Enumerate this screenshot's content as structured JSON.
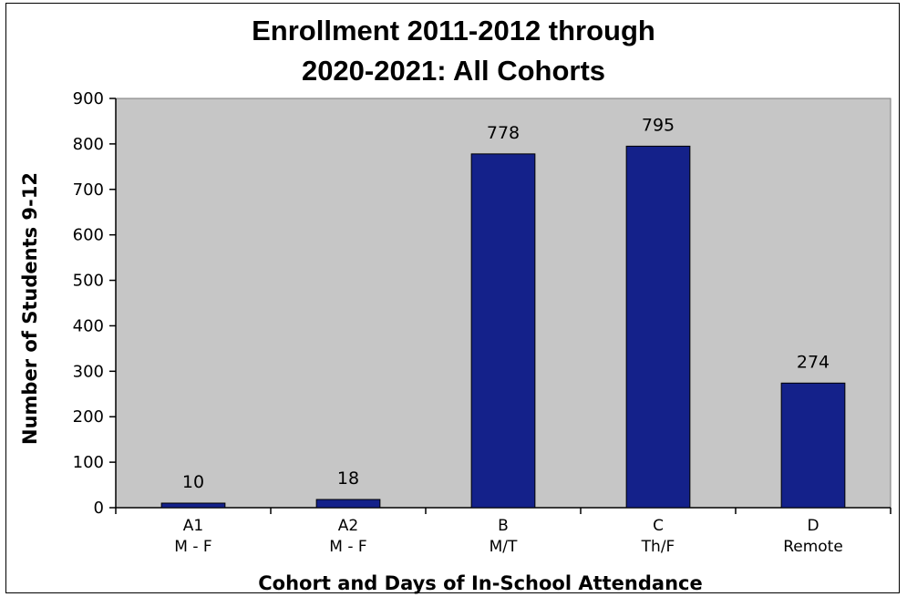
{
  "chart_data": {
    "type": "bar",
    "title_lines": [
      "Enrollment 2011-2012 through",
      "2020-2021:  All Cohorts"
    ],
    "categories": [
      [
        "A1",
        "M - F"
      ],
      [
        "A2",
        "M - F"
      ],
      [
        "B",
        "M/T"
      ],
      [
        "C",
        "Th/F"
      ],
      [
        "D",
        "Remote"
      ]
    ],
    "values": [
      10,
      18,
      778,
      795,
      274
    ],
    "data_labels": [
      "10",
      "18",
      "778",
      "795",
      "274"
    ],
    "xlabel": "Cohort and Days of In-School Attendance",
    "ylabel": "Number of Students 9-12",
    "ylim": [
      0,
      900
    ],
    "yticks": [
      0,
      100,
      200,
      300,
      400,
      500,
      600,
      700,
      800,
      900
    ],
    "grid": false,
    "legend": "none",
    "colors": {
      "bar": "#14218a",
      "plot_area": "#c6c6c6"
    }
  }
}
